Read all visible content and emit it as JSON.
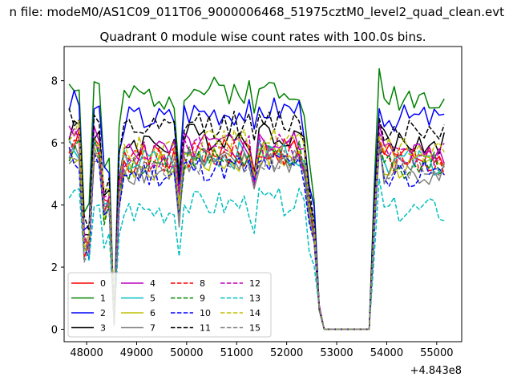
{
  "suptitle": "n file: modeM0/AS1C09_011T06_9000006468_51975cztM0_level2_quad_clean.evt",
  "chart_data": {
    "type": "line",
    "title": "Quadrant 0 module wise count rates with 100.0s bins.",
    "xlabel": "",
    "ylabel": "",
    "x_offset_label": "+4.843e8",
    "xlim": [
      47550,
      55500
    ],
    "ylim": [
      -0.4,
      9.1
    ],
    "xticks": [
      48000,
      49000,
      50000,
      51000,
      52000,
      53000,
      54000,
      55000
    ],
    "xtick_labels": [
      "48000",
      "49000",
      "50000",
      "51000",
      "52000",
      "53000",
      "54000",
      "55000"
    ],
    "yticks": [
      0,
      2,
      4,
      6,
      8
    ],
    "ytick_labels": [
      "0",
      "2",
      "4",
      "6",
      "8"
    ],
    "grid": false,
    "legend_position": "lower-left",
    "legend_columns": 4,
    "x_segments": [
      [
        47650,
        48650
      ],
      [
        48750,
        52650
      ],
      [
        52750,
        53650
      ],
      [
        53750,
        55150
      ]
    ],
    "bin_seconds": 100,
    "series": [
      {
        "name": "0",
        "color": "#ff0000",
        "style": "solid",
        "level": 5.6,
        "dip": 2.2,
        "seed": 1
      },
      {
        "name": "1",
        "color": "#008000",
        "style": "solid",
        "level": 7.6,
        "dip": 3.6,
        "seed": 2
      },
      {
        "name": "2",
        "color": "#0000ff",
        "style": "solid",
        "level": 6.9,
        "dip": 3.0,
        "seed": 3
      },
      {
        "name": "3",
        "color": "#000000",
        "style": "solid",
        "level": 6.1,
        "dip": 2.8,
        "seed": 4
      },
      {
        "name": "4",
        "color": "#bf00bf",
        "style": "solid",
        "level": 5.8,
        "dip": 2.6,
        "seed": 5
      },
      {
        "name": "5",
        "color": "#00bfbf",
        "style": "solid",
        "level": 5.5,
        "dip": 2.3,
        "seed": 6
      },
      {
        "name": "6",
        "color": "#bfbf00",
        "style": "solid",
        "level": 5.3,
        "dip": 2.2,
        "seed": 7
      },
      {
        "name": "7",
        "color": "#808080",
        "style": "solid",
        "level": 5.2,
        "dip": 2.1,
        "seed": 8
      },
      {
        "name": "8",
        "color": "#ff0000",
        "style": "dashed",
        "level": 5.5,
        "dip": 2.3,
        "seed": 9
      },
      {
        "name": "9",
        "color": "#008000",
        "style": "dashed",
        "level": 5.4,
        "dip": 2.2,
        "seed": 10
      },
      {
        "name": "10",
        "color": "#0000ff",
        "style": "dashed",
        "level": 5.1,
        "dip": 2.0,
        "seed": 11
      },
      {
        "name": "11",
        "color": "#000000",
        "style": "dashed",
        "level": 6.5,
        "dip": 3.0,
        "seed": 12
      },
      {
        "name": "12",
        "color": "#bf00bf",
        "style": "dashed",
        "level": 5.7,
        "dip": 2.4,
        "seed": 13
      },
      {
        "name": "13",
        "color": "#00bfbf",
        "style": "dashed",
        "level": 3.9,
        "dip": 1.5,
        "seed": 14
      },
      {
        "name": "14",
        "color": "#bfbf00",
        "style": "dashed",
        "level": 5.9,
        "dip": 2.5,
        "seed": 15
      },
      {
        "name": "15",
        "color": "#808080",
        "style": "dashed",
        "level": 5.3,
        "dip": 2.1,
        "seed": 16
      }
    ]
  }
}
